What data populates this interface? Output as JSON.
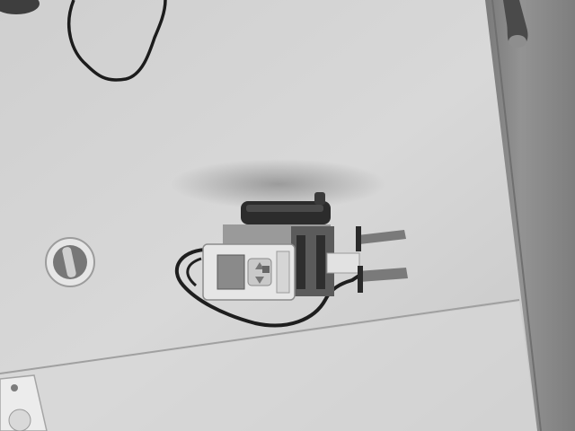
{
  "scene": {
    "description_hidden": "",
    "colors": {
      "table": "#d2d2d2",
      "table_shadow": "#b8b8b8",
      "wood": "#8a8a8a",
      "wood_dark": "#6c6c6c",
      "seam": "#a9a9a9",
      "robot_body": "#e3e3e3",
      "robot_dark": "#3a3a3a",
      "cable": "#1e1e1e"
    }
  }
}
